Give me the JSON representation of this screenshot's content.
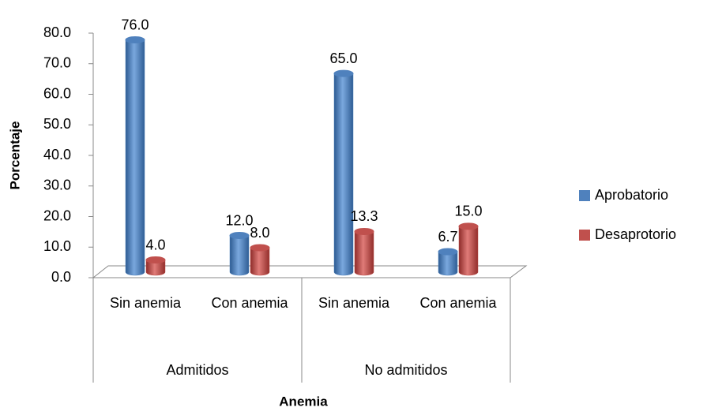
{
  "chart_data": {
    "type": "bar3d",
    "x_label": "Anemia",
    "y_label": "Porcentaje",
    "categories": [
      "Sin anemia",
      "Con anemia",
      "Sin anemia",
      "Con anemia"
    ],
    "groups": [
      {
        "name": "Admitidos",
        "span": [
          0,
          1
        ]
      },
      {
        "name": "No admitidos",
        "span": [
          2,
          3
        ]
      }
    ],
    "series": [
      {
        "name": "Aprobatorio",
        "color": "#4f81bd",
        "values": [
          76.0,
          12.0,
          65.0,
          6.7
        ],
        "value_labels": [
          "76.0",
          "12.0",
          "65.0",
          "6.7"
        ]
      },
      {
        "name": "Desaprotorio",
        "color": "#c0504d",
        "values": [
          4.0,
          8.0,
          13.3,
          15.0
        ],
        "value_labels": [
          "4.0",
          "8.0",
          "13.3",
          "15.0"
        ]
      }
    ],
    "ylim": [
      0,
      80
    ],
    "yticks": [
      {
        "value": 0,
        "label": "0.0"
      },
      {
        "value": 10,
        "label": "10.0"
      },
      {
        "value": 20,
        "label": "20.0"
      },
      {
        "value": 30,
        "label": "30.0"
      },
      {
        "value": 40,
        "label": "40.0"
      },
      {
        "value": 50,
        "label": "50.0"
      },
      {
        "value": 60,
        "label": "60.0"
      },
      {
        "value": 70,
        "label": "70.0"
      },
      {
        "value": 80,
        "label": "80.0"
      }
    ],
    "legend": "right"
  }
}
